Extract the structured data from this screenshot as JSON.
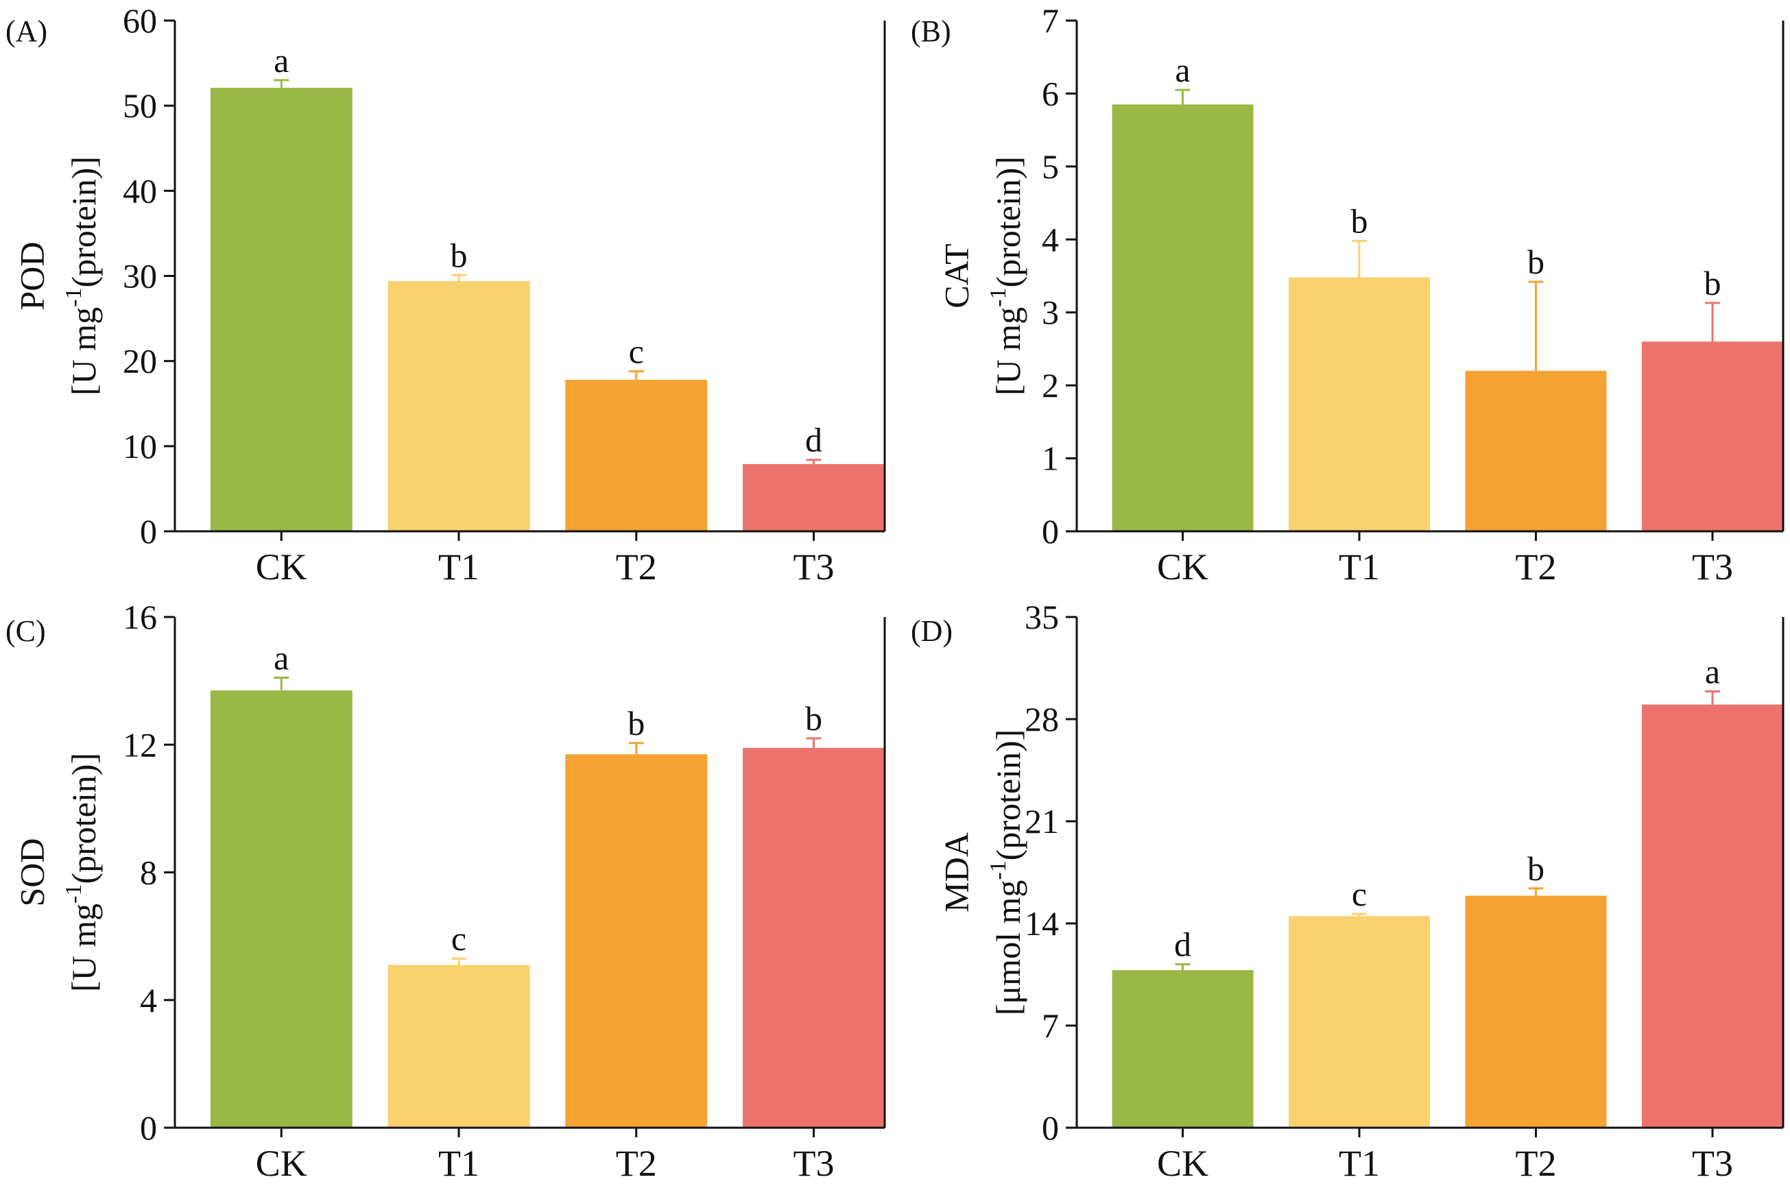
{
  "colors": {
    "CK": "#9bb846",
    "T1": "#f9d26f",
    "T2": "#f4a232",
    "T3": "#ec736b",
    "axis": "#111111"
  },
  "chart_data": [
    {
      "id": "A",
      "type": "bar",
      "panel_label": "(A)",
      "ylabel_main": "POD",
      "ylabel_unit": "[U mg",
      "ylabel_sup": "-1",
      "ylabel_tail": "(protein)]",
      "categories": [
        "CK",
        "T1",
        "T2",
        "T3"
      ],
      "values": [
        52.1,
        29.4,
        17.8,
        7.9
      ],
      "errors": [
        0.9,
        0.7,
        1.0,
        0.5
      ],
      "significance": [
        "a",
        "b",
        "c",
        "d"
      ],
      "ylim": [
        0,
        60
      ],
      "yticks": [
        0,
        10,
        20,
        30,
        40,
        50,
        60
      ],
      "ytick_labels": [
        "0",
        "10",
        "20",
        "30",
        "40",
        "50",
        "60"
      ]
    },
    {
      "id": "B",
      "type": "bar",
      "panel_label": "(B)",
      "ylabel_main": "CAT",
      "ylabel_unit": "[U mg",
      "ylabel_sup": "-1",
      "ylabel_tail": "(protein)]",
      "categories": [
        "CK",
        "T1",
        "T2",
        "T3"
      ],
      "values": [
        5.85,
        3.48,
        2.2,
        2.6
      ],
      "errors": [
        0.2,
        0.5,
        1.22,
        0.53
      ],
      "significance": [
        "a",
        "b",
        "b",
        "b"
      ],
      "ylim": [
        0,
        7
      ],
      "yticks": [
        0,
        1,
        2,
        3,
        4,
        5,
        6,
        7
      ],
      "ytick_labels": [
        "0",
        "1",
        "2",
        "3",
        "4",
        "5",
        "6",
        "7"
      ]
    },
    {
      "id": "C",
      "type": "bar",
      "panel_label": "(C)",
      "ylabel_main": "SOD",
      "ylabel_unit": "[U mg",
      "ylabel_sup": "-1",
      "ylabel_tail": "(protein)]",
      "categories": [
        "CK",
        "T1",
        "T2",
        "T3"
      ],
      "values": [
        13.7,
        5.1,
        11.7,
        11.9
      ],
      "errors": [
        0.4,
        0.2,
        0.35,
        0.3
      ],
      "significance": [
        "a",
        "c",
        "b",
        "b"
      ],
      "ylim": [
        0,
        16
      ],
      "yticks": [
        0,
        4,
        8,
        12,
        16
      ],
      "ytick_labels": [
        "0",
        "4",
        "8",
        "12",
        "16"
      ]
    },
    {
      "id": "D",
      "type": "bar",
      "panel_label": "(D)",
      "ylabel_main": "MDA",
      "ylabel_unit": "[μmol mg",
      "ylabel_sup": "-1",
      "ylabel_tail": "(protein)]",
      "categories": [
        "CK",
        "T1",
        "T2",
        "T3"
      ],
      "values": [
        10.8,
        14.5,
        15.9,
        29.0
      ],
      "errors": [
        0.4,
        0.15,
        0.5,
        0.9
      ],
      "significance": [
        "d",
        "c",
        "b",
        "a"
      ],
      "ylim": [
        0,
        35
      ],
      "yticks": [
        0,
        7,
        14,
        21,
        28,
        35
      ],
      "ytick_labels": [
        "0",
        "7",
        "14",
        "21",
        "28",
        "35"
      ]
    }
  ]
}
